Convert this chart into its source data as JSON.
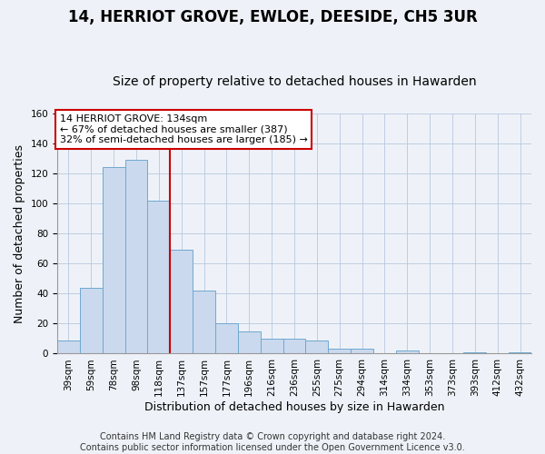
{
  "title": "14, HERRIOT GROVE, EWLOE, DEESIDE, CH5 3UR",
  "subtitle": "Size of property relative to detached houses in Hawarden",
  "xlabel": "Distribution of detached houses by size in Hawarden",
  "ylabel": "Number of detached properties",
  "bar_labels": [
    "39sqm",
    "59sqm",
    "78sqm",
    "98sqm",
    "118sqm",
    "137sqm",
    "157sqm",
    "177sqm",
    "196sqm",
    "216sqm",
    "236sqm",
    "255sqm",
    "275sqm",
    "294sqm",
    "314sqm",
    "334sqm",
    "353sqm",
    "373sqm",
    "393sqm",
    "412sqm",
    "432sqm"
  ],
  "bar_values": [
    9,
    44,
    124,
    129,
    102,
    69,
    42,
    20,
    15,
    10,
    10,
    9,
    3,
    3,
    0,
    2,
    0,
    0,
    1,
    0,
    1
  ],
  "bar_color": "#cad9ee",
  "bar_edge_color": "#6fa8d0",
  "vline_x": 4.5,
  "vline_color": "#cc0000",
  "ylim": [
    0,
    160
  ],
  "annotation_line1": "14 HERRIOT GROVE: 134sqm",
  "annotation_line2": "← 67% of detached houses are smaller (387)",
  "annotation_line3": "32% of semi-detached houses are larger (185) →",
  "footer_text": "Contains HM Land Registry data © Crown copyright and database right 2024.\nContains public sector information licensed under the Open Government Licence v3.0.",
  "bg_color": "#eef2f8",
  "plot_bg_color": "#eef2f8",
  "title_fontsize": 12,
  "subtitle_fontsize": 10,
  "label_fontsize": 9,
  "tick_fontsize": 7.5,
  "footer_fontsize": 7
}
